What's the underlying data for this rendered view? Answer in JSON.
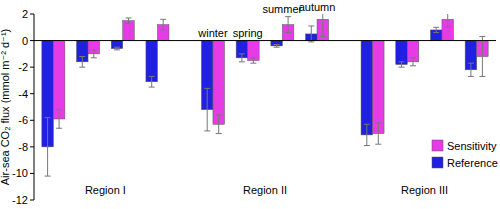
{
  "chart_data": {
    "type": "bar",
    "y_label": "Air-sea CO₂ flux (mmol m⁻² d⁻¹)",
    "categories": [
      null,
      null,
      null,
      null,
      "winter",
      "spring",
      "summer",
      "autumn",
      null,
      null,
      null,
      null
    ],
    "annotations": [
      "Region I",
      "Region II",
      "Region III"
    ],
    "series": [
      {
        "name": "Reference",
        "color": "#2020e0",
        "values": [
          -8.0,
          -1.6,
          -0.6,
          -3.1,
          -5.2,
          -1.3,
          -0.4,
          0.5,
          -7.1,
          -1.8,
          0.8,
          -2.2
        ],
        "errors": [
          2.2,
          0.4,
          0.1,
          0.4,
          1.6,
          0.3,
          0.1,
          0.6,
          0.8,
          0.2,
          0.2,
          0.5
        ]
      },
      {
        "name": "Sensitivity",
        "color": "#e63ce6",
        "values": [
          -5.9,
          -1.0,
          1.5,
          1.2,
          -6.3,
          -1.5,
          1.2,
          1.6,
          -7.0,
          -1.6,
          1.6,
          -1.2
        ],
        "errors": [
          0.7,
          0.3,
          0.2,
          0.4,
          0.7,
          0.2,
          0.6,
          1.3,
          0.8,
          0.3,
          0.6,
          1.5
        ]
      }
    ],
    "ylim": [
      -12,
      2
    ],
    "yticks": [
      -12,
      -10,
      -8,
      -6,
      -4,
      -2,
      0,
      2
    ],
    "legend": "lower right"
  }
}
